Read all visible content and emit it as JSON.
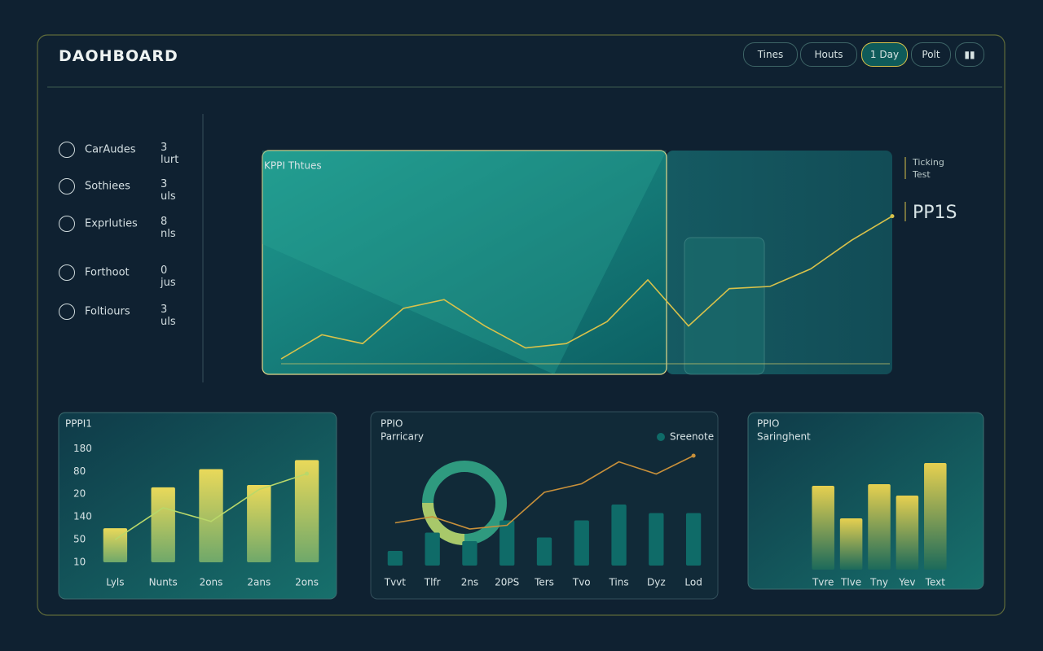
{
  "header": {
    "title": "DAOHBOARD",
    "buttons": [
      "Tines",
      "Houts",
      "1 Day",
      "Polt"
    ],
    "active": 2
  },
  "sidebar": {
    "items": [
      {
        "label": "CarAudes",
        "value": "3 lurt"
      },
      {
        "label": "Sothiees",
        "value": "3 uls"
      },
      {
        "label": "Exprluties",
        "value": "8 nls"
      },
      {
        "label": "Forthoot",
        "value": "0 jus"
      },
      {
        "label": "Foltiours",
        "value": "3 uls"
      }
    ]
  },
  "chart_data": [
    {
      "type": "line",
      "title": "KPPI Thtues",
      "annotations": [
        "Ticking Test",
        "PP1S"
      ],
      "ylim": [
        0,
        100
      ],
      "series": [
        {
          "color": "#d9c24a",
          "values": [
            7,
            18,
            14,
            30,
            34,
            22,
            12,
            14,
            24,
            43,
            22,
            39,
            40,
            48,
            61,
            72
          ]
        }
      ]
    },
    {
      "type": "bar",
      "title": "PPPI1",
      "categories": [
        "Lyls",
        "Nunts",
        "2ons",
        "2ans",
        "2ons"
      ],
      "ylim": [
        0,
        5.3
      ],
      "yticks": [
        {
          "value": 5,
          "label": "180"
        },
        {
          "value": 4,
          "label": "80"
        },
        {
          "value": 3,
          "label": "20"
        },
        {
          "value": 2,
          "label": "140"
        },
        {
          "value": 1,
          "label": "50"
        },
        {
          "value": 0,
          "label": "10"
        }
      ],
      "series": [
        {
          "color": "#e3d35a",
          "values": [
            1.5,
            3.3,
            4.1,
            3.4,
            4.5
          ]
        },
        {
          "type": "line",
          "color": "#b9d86a",
          "values": [
            1.0,
            2.4,
            1.8,
            3.2,
            3.9
          ]
        }
      ]
    },
    {
      "type": "bar",
      "title": "PPIO",
      "subtitle": "Parricary",
      "categories": [
        "Tvvt",
        "Tlfr",
        "2ns",
        "20PS",
        "Ters",
        "Tvo",
        "Tins",
        "Dyz",
        "Lod"
      ],
      "ylim": [
        0,
        100
      ],
      "series": [
        {
          "name": "Sreenote",
          "color": "#0f6b68",
          "values": [
            12,
            27,
            20,
            37,
            23,
            37,
            50,
            43,
            43
          ]
        },
        {
          "type": "line",
          "color": "#c8903a",
          "values": [
            35,
            40,
            30,
            33,
            60,
            67,
            85,
            75,
            90
          ]
        }
      ]
    },
    {
      "type": "bar",
      "title": "PPIO",
      "subtitle": "Saringhent",
      "categories": [
        "Tvre",
        "Tlve",
        "Tny",
        "Yev",
        "Text"
      ],
      "ylim": [
        0,
        150
      ],
      "series": [
        {
          "color": "#e0cd55",
          "values": [
            103,
            63,
            105,
            91,
            131
          ]
        }
      ]
    }
  ]
}
